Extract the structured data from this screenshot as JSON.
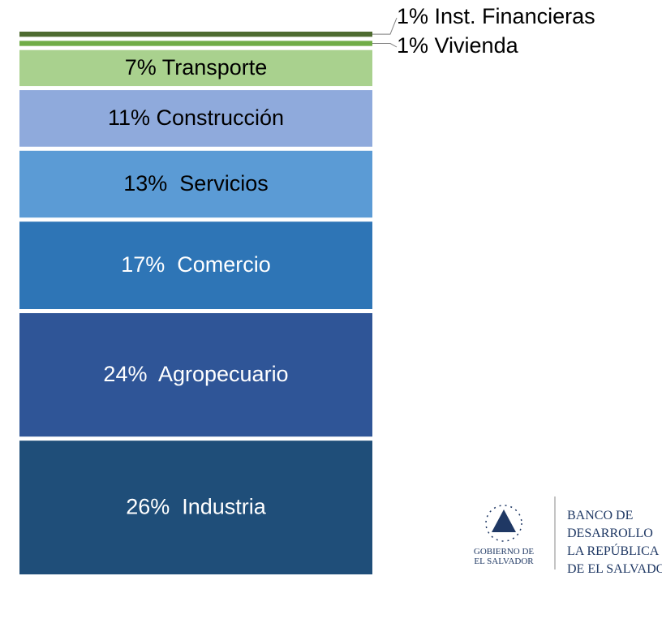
{
  "chart_data": {
    "type": "stacked_bar",
    "series": [
      {
        "color": "#1f4e79",
        "label_color": "#ffffff",
        "values": [
          26
        ],
        "value_labels": [
          "26%  Industria"
        ]
      },
      {
        "color": "#2f5597",
        "label_color": "#ffffff",
        "values": [
          24
        ],
        "value_labels": [
          "24%  Agropecuario"
        ]
      },
      {
        "color": "#2e75b6",
        "label_color": "#ffffff",
        "values": [
          17
        ],
        "value_labels": [
          "17%  Comercio"
        ]
      },
      {
        "color": "#5b9bd5",
        "label_color": "#000000",
        "values": [
          13
        ],
        "value_labels": [
          "13%  Servicios"
        ]
      },
      {
        "color": "#8faadc",
        "label_color": "#000000",
        "values": [
          11
        ],
        "value_labels": [
          "11% Construcción"
        ]
      },
      {
        "color": "#a9d18e",
        "label_color": "#000000",
        "values": [
          7
        ],
        "value_labels": [
          "7% Transporte"
        ]
      },
      {
        "color": "#70ad47",
        "label_color": "#000000",
        "values": [
          1
        ],
        "value_labels": [
          "1% Vivienda"
        ]
      },
      {
        "color": "#4e6b30",
        "label_color": "#000000",
        "values": [
          1
        ],
        "value_labels": [
          "1% Inst. Financieras"
        ]
      }
    ]
  },
  "logo": {
    "left": [
      "GOBIERNO DE",
      "EL SALVADOR"
    ],
    "right": [
      "BANCO DE",
      "DESARROLLO",
      "LA REPÚBLICA",
      "DE EL SALVADOR"
    ]
  }
}
